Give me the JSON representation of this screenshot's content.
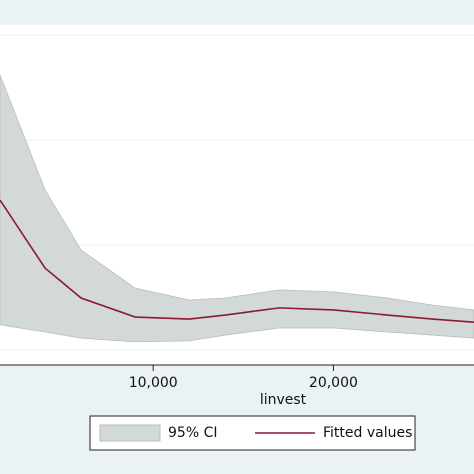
{
  "chart_data": {
    "type": "line",
    "x_label": "linvest",
    "x": [
      1500,
      4000,
      6000,
      9000,
      12000,
      14000,
      17000,
      20000,
      23000,
      25500,
      27800
    ],
    "series": [
      {
        "name": "95% CI",
        "color": "#d3d8d8",
        "lower": [
          11.8,
          9.7,
          7.9,
          6.8,
          7.1,
          8.8,
          10.9,
          10.9,
          9.7,
          8.8,
          7.9
        ],
        "upper": [
          85.3,
          51.5,
          33.8,
          22.6,
          19.1,
          19.7,
          22.1,
          21.5,
          19.7,
          17.6,
          16.2
        ]
      },
      {
        "name": "Fitted values",
        "color": "#8b1a2e",
        "values": [
          48.5,
          28.5,
          19.7,
          14.1,
          13.5,
          14.7,
          16.8,
          16.2,
          14.7,
          13.5,
          12.6
        ]
      }
    ],
    "xlim": [
      1500,
      27800
    ],
    "xticks": [
      {
        "value": 10000,
        "label": "10,000"
      },
      {
        "value": 20000,
        "label": "20,000"
      }
    ],
    "ylim": [
      0,
      100
    ],
    "yticks": [
      4.4,
      35.3,
      66.2,
      97
    ],
    "grid": true
  }
}
